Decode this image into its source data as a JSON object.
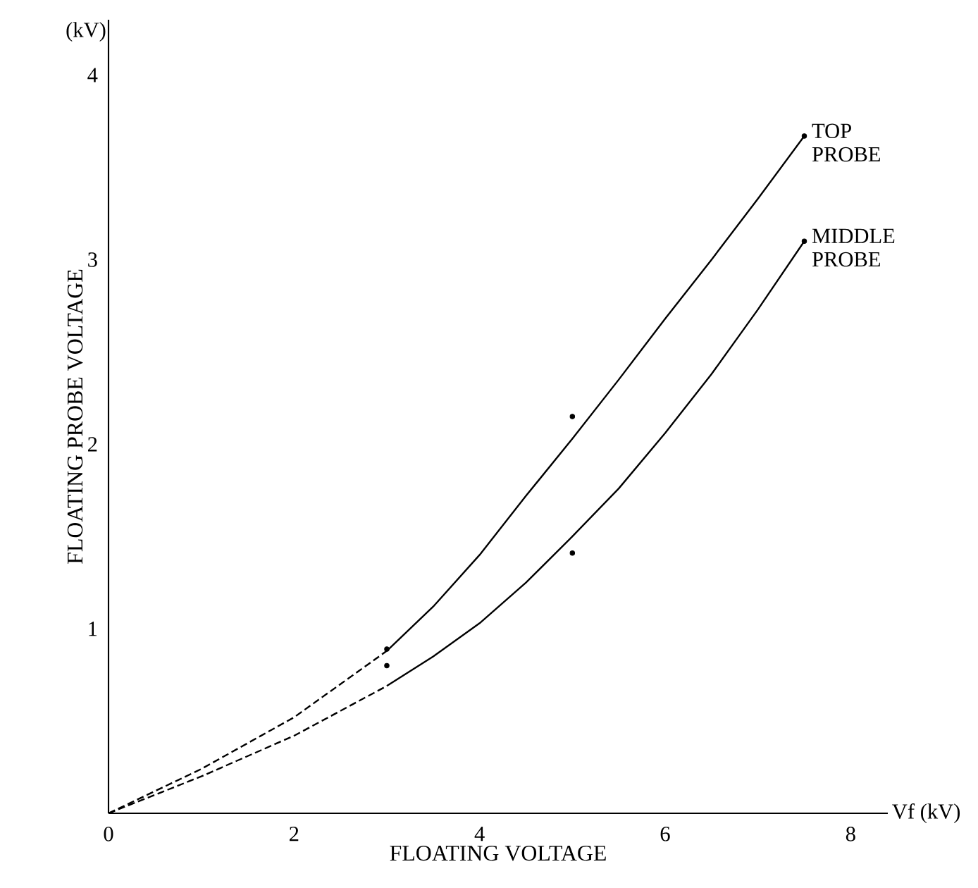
{
  "chart_data": {
    "type": "line",
    "xlabel": "FLOATING VOLTAGE",
    "ylabel": "FLOATING PROBE VOLTAGE",
    "annotations": [
      "(kV)",
      "Vf (kV)"
    ],
    "xlim": [
      0,
      8.4
    ],
    "ylim": [
      0,
      4.3
    ],
    "xticks": [
      0,
      2,
      4,
      6,
      8
    ],
    "yticks": [
      1,
      2,
      3,
      4
    ],
    "grid": false,
    "series": [
      {
        "line_style": "dashed",
        "color": "#000000",
        "x": [
          0,
          1,
          2,
          3
        ],
        "values": [
          0,
          0.24,
          0.52,
          0.88
        ]
      },
      {
        "line_style": "solid",
        "name": "TOP PROBE",
        "color": "#000000",
        "x": [
          3,
          3.5,
          4,
          4.5,
          5,
          5.5,
          6,
          6.5,
          7,
          7.5
        ],
        "values": [
          0.88,
          1.12,
          1.4,
          1.72,
          2.03,
          2.35,
          2.68,
          3.0,
          3.33,
          3.67
        ]
      },
      {
        "line_style": "dashed",
        "color": "#000000",
        "x": [
          0,
          1,
          2,
          3
        ],
        "values": [
          0,
          0.2,
          0.42,
          0.69
        ]
      },
      {
        "line_style": "solid",
        "name": "MIDDLE PROBE",
        "color": "#000000",
        "x": [
          3,
          3.5,
          4,
          4.5,
          5,
          5.5,
          6,
          6.5,
          7,
          7.5
        ],
        "values": [
          0.69,
          0.85,
          1.03,
          1.25,
          1.5,
          1.76,
          2.06,
          2.38,
          2.73,
          3.1
        ]
      },
      {
        "type": "scatter",
        "marker": "circle",
        "color": "#000000",
        "x": [
          3,
          5,
          7.5
        ],
        "values": [
          0.89,
          2.15,
          3.67
        ]
      },
      {
        "type": "scatter",
        "marker": "circle",
        "color": "#000000",
        "x": [
          3,
          5,
          7.5
        ],
        "values": [
          0.8,
          1.41,
          3.1
        ]
      }
    ]
  }
}
